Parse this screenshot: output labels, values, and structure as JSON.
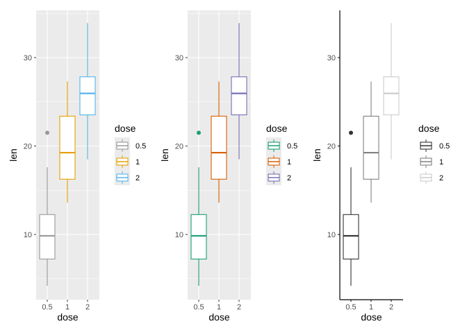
{
  "chart_data": [
    {
      "type": "boxplot",
      "theme": "gray",
      "grid": true,
      "xlabel": "dose",
      "ylabel": "len",
      "categories": [
        "0.5",
        "1",
        "2"
      ],
      "yticks": [
        10,
        20,
        30
      ],
      "ylim": [
        2.7,
        35.6
      ],
      "legend": {
        "title": "dose",
        "placement": "right",
        "entries": [
          "0.5",
          "1",
          "2"
        ]
      },
      "colors": [
        "#999999",
        "#E69F00",
        "#56B4E9"
      ],
      "boxes": [
        {
          "min": 4.2,
          "q1": 7.225,
          "median": 9.85,
          "q3": 12.25,
          "max": 17.6,
          "outliers": [
            21.5
          ]
        },
        {
          "min": 13.6,
          "q1": 16.25,
          "median": 19.25,
          "q3": 23.375,
          "max": 27.3,
          "outliers": []
        },
        {
          "min": 18.5,
          "q1": 23.525,
          "median": 25.95,
          "q3": 27.825,
          "max": 33.9,
          "outliers": []
        }
      ]
    },
    {
      "type": "boxplot",
      "theme": "gray",
      "grid": true,
      "xlabel": "dose",
      "ylabel": "len",
      "categories": [
        "0.5",
        "1",
        "2"
      ],
      "yticks": [
        10,
        20,
        30
      ],
      "ylim": [
        2.7,
        35.6
      ],
      "legend": {
        "title": "dose",
        "placement": "right",
        "entries": [
          "0.5",
          "1",
          "2"
        ]
      },
      "colors": [
        "#1B9E77",
        "#D95F02",
        "#7570B3"
      ],
      "boxes": [
        {
          "min": 4.2,
          "q1": 7.225,
          "median": 9.85,
          "q3": 12.25,
          "max": 17.6,
          "outliers": [
            21.5
          ]
        },
        {
          "min": 13.6,
          "q1": 16.25,
          "median": 19.25,
          "q3": 23.375,
          "max": 27.3,
          "outliers": []
        },
        {
          "min": 18.5,
          "q1": 23.525,
          "median": 25.95,
          "q3": 27.825,
          "max": 33.9,
          "outliers": []
        }
      ]
    },
    {
      "type": "boxplot",
      "theme": "classic",
      "grid": false,
      "xlabel": "dose",
      "ylabel": "len",
      "categories": [
        "0.5",
        "1",
        "2"
      ],
      "yticks": [
        10,
        20,
        30
      ],
      "ylim": [
        2.7,
        35.6
      ],
      "legend": {
        "title": "dose",
        "placement": "right",
        "entries": [
          "0.5",
          "1",
          "2"
        ]
      },
      "colors": [
        "#333333",
        "#808080",
        "#CCCCCC"
      ],
      "boxes": [
        {
          "min": 4.2,
          "q1": 7.225,
          "median": 9.85,
          "q3": 12.25,
          "max": 17.6,
          "outliers": [
            21.5
          ]
        },
        {
          "min": 13.6,
          "q1": 16.25,
          "median": 19.25,
          "q3": 23.375,
          "max": 27.3,
          "outliers": []
        },
        {
          "min": 18.5,
          "q1": 23.525,
          "median": 25.95,
          "q3": 27.825,
          "max": 33.9,
          "outliers": []
        }
      ]
    }
  ]
}
